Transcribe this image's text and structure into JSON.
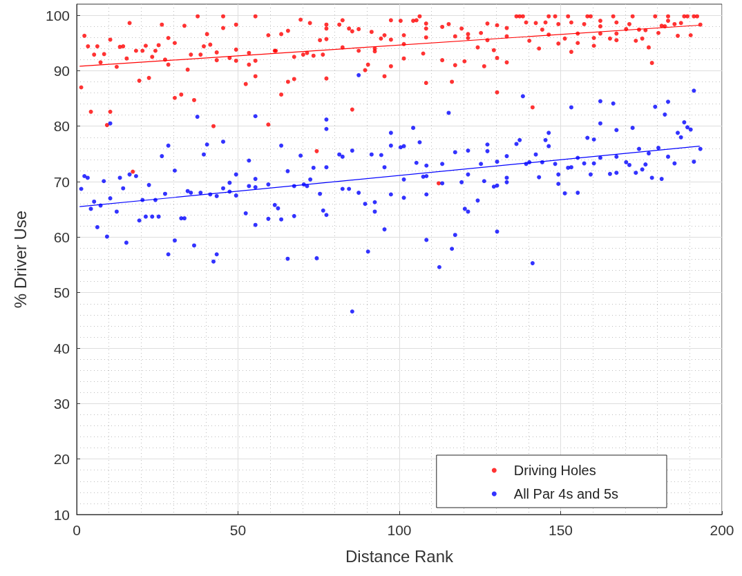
{
  "chart_data": {
    "type": "scatter",
    "xlabel": "Distance Rank",
    "ylabel": "% Driver Use",
    "xlim": [
      0,
      200
    ],
    "ylim": [
      10,
      102
    ],
    "xticks": [
      0,
      50,
      100,
      150,
      200
    ],
    "yticks": [
      10,
      20,
      30,
      40,
      50,
      60,
      70,
      80,
      90,
      100
    ],
    "grid": true,
    "legend": "bottom right",
    "marker": "circle",
    "series": [
      {
        "name": "Driving Holes",
        "color": "#ff0000",
        "x": [
          1.4,
          2.4,
          3.5,
          4.4,
          5.4,
          6.4,
          7.4,
          8.5,
          9.4,
          10.4,
          10.4,
          12.4,
          13.4,
          14.4,
          15.5,
          16.4,
          17.4,
          18.4,
          19.4,
          20.4,
          21.4,
          22.4,
          23.4,
          24.4,
          25.4,
          26.4,
          27.4,
          28.4,
          28.4,
          30.4,
          30.4,
          32.4,
          33.4,
          34.4,
          35.4,
          36.4,
          37.5,
          38.4,
          39.4,
          40.4,
          41.4,
          42.4,
          43.4,
          43.4,
          45.4,
          45.4,
          47.4,
          49.4,
          49.4,
          49.4,
          52.4,
          53.4,
          53.4,
          55.4,
          55.4,
          55.4,
          59.4,
          59.4,
          61.4,
          61.7,
          63.4,
          63.4,
          65.5,
          65.5,
          67.4,
          67.4,
          69.4,
          70.2,
          71.4,
          72.3,
          73.4,
          74.4,
          75.4,
          76.3,
          77.4,
          77.4,
          77.4,
          77.4,
          81.4,
          82.4,
          82.4,
          84.4,
          85.4,
          85.4,
          87.4,
          87.4,
          89.4,
          90.3,
          91.4,
          92.4,
          92.4,
          94.3,
          95.4,
          95.4,
          97.4,
          97.4,
          97.4,
          100.4,
          101.4,
          101.4,
          101.4,
          104.3,
          105.3,
          106.3,
          107.4,
          108.3,
          108.3,
          108.3,
          108.3,
          112.2,
          113.3,
          113.3,
          115.3,
          116.3,
          117.3,
          117.3,
          119.3,
          120.2,
          121.3,
          121.3,
          124.3,
          125.3,
          126.3,
          127.3,
          127.3,
          129.3,
          130.3,
          130.3,
          130.3,
          133.3,
          133.3,
          133.3,
          136.3,
          137.3,
          138.3,
          139.3,
          140.3,
          141.3,
          142.3,
          143.3,
          144.3,
          145.3,
          146.3,
          146.3,
          148.3,
          149.3,
          149.3,
          151.3,
          152.3,
          153.3,
          153.3,
          155.3,
          155.3,
          157.3,
          158.3,
          159.3,
          160.3,
          160.3,
          162.3,
          162.3,
          162.3,
          165.3,
          166.3,
          167.3,
          167.3,
          167.3,
          170.3,
          171.3,
          172.3,
          173.3,
          174.3,
          175.3,
          176.3,
          177.3,
          178.3,
          179.3,
          180.3,
          181.3,
          182.3,
          183.3,
          183.3,
          185.3,
          186.3,
          187.3,
          188.3,
          189.3,
          190.3,
          191.3,
          192.3,
          193.3
        ],
        "values": [
          87.0,
          96.3,
          94.4,
          82.6,
          92.9,
          94.4,
          91.5,
          93.0,
          80.2,
          95.6,
          82.6,
          90.7,
          94.3,
          94.4,
          92.2,
          98.6,
          71.8,
          93.6,
          88.2,
          93.6,
          94.5,
          88.7,
          92.5,
          93.6,
          94.6,
          98.3,
          92.0,
          95.9,
          91.1,
          95.0,
          85.1,
          85.7,
          98.1,
          90.2,
          92.9,
          84.7,
          99.8,
          92.9,
          94.4,
          96.6,
          94.7,
          80.0,
          93.3,
          91.9,
          99.8,
          97.7,
          92.3,
          98.3,
          93.8,
          91.8,
          87.6,
          93.2,
          91.1,
          99.8,
          91.8,
          89.0,
          96.4,
          80.3,
          93.6,
          93.6,
          96.6,
          85.7,
          97.2,
          88.0,
          92.5,
          88.5,
          99.2,
          92.9,
          93.2,
          98.6,
          92.7,
          75.5,
          95.5,
          92.9,
          98.3,
          97.6,
          95.7,
          88.6,
          98.3,
          99.1,
          94.2,
          97.6,
          97.1,
          83.0,
          97.5,
          93.6,
          90.1,
          91.1,
          97.0,
          94.0,
          93.5,
          95.8,
          96.4,
          89.0,
          99.1,
          95.6,
          90.8,
          99.0,
          96.4,
          94.8,
          92.2,
          99.0,
          99.1,
          99.8,
          93.1,
          98.5,
          97.6,
          96.0,
          87.8,
          69.7,
          97.9,
          91.9,
          98.4,
          88.0,
          96.2,
          91.0,
          97.6,
          91.7,
          96.6,
          95.9,
          94.2,
          96.8,
          90.8,
          98.5,
          95.5,
          93.7,
          98.2,
          92.3,
          86.1,
          97.7,
          96.2,
          91.5,
          99.8,
          99.8,
          99.8,
          98.7,
          95.4,
          83.4,
          98.6,
          94.0,
          97.4,
          98.7,
          99.8,
          96.5,
          99.8,
          98.4,
          94.9,
          95.8,
          99.8,
          98.7,
          93.4,
          96.7,
          95.0,
          98.4,
          99.8,
          99.8,
          95.9,
          94.5,
          99.0,
          98.0,
          96.7,
          95.8,
          99.8,
          98.7,
          96.7,
          95.5,
          97.5,
          98.4,
          99.8,
          95.4,
          97.4,
          95.8,
          97.3,
          94.2,
          91.4,
          99.8,
          96.8,
          98.1,
          98.0,
          99.8,
          99.0,
          98.4,
          96.3,
          98.6,
          99.8,
          99.8,
          96.4,
          99.8,
          99.8,
          98.3
        ]
      },
      {
        "name": "All Par 4s and 5s",
        "color": "#0000ff",
        "x": [
          1.4,
          2.4,
          3.4,
          4.4,
          5.4,
          6.4,
          7.4,
          8.4,
          9.4,
          10.4,
          10.4,
          12.4,
          13.4,
          14.4,
          15.4,
          16.4,
          18.4,
          19.4,
          20.4,
          21.4,
          22.4,
          23.4,
          24.4,
          25.4,
          26.4,
          27.4,
          28.4,
          28.4,
          30.4,
          30.4,
          32.4,
          33.4,
          34.4,
          35.4,
          36.4,
          37.4,
          38.4,
          39.4,
          40.4,
          41.4,
          42.4,
          43.4,
          43.4,
          45.4,
          45.4,
          47.4,
          47.4,
          49.4,
          49.4,
          52.4,
          53.4,
          53.4,
          55.4,
          55.4,
          55.4,
          55.4,
          59.4,
          59.4,
          61.4,
          62.4,
          63.4,
          63.4,
          65.4,
          65.4,
          67.4,
          67.4,
          69.4,
          70.4,
          71.4,
          72.4,
          73.4,
          74.4,
          75.4,
          76.4,
          77.4,
          77.4,
          77.4,
          77.4,
          81.4,
          82.4,
          82.4,
          84.4,
          85.4,
          85.4,
          87.4,
          87.4,
          89.4,
          90.3,
          91.4,
          92.4,
          92.4,
          94.4,
          95.4,
          95.4,
          97.4,
          97.4,
          97.4,
          100.4,
          101.4,
          101.4,
          101.4,
          104.3,
          105.3,
          106.3,
          107.4,
          108.4,
          108.4,
          108.4,
          108.4,
          112.4,
          113.3,
          113.3,
          115.3,
          116.3,
          117.3,
          117.3,
          119.3,
          120.3,
          121.3,
          121.3,
          121.3,
          124.3,
          125.3,
          126.3,
          127.3,
          127.3,
          129.3,
          130.3,
          130.3,
          130.3,
          133.3,
          133.3,
          133.3,
          136.3,
          137.3,
          138.3,
          139.3,
          140.3,
          141.3,
          142.3,
          143.3,
          144.3,
          145.3,
          146.3,
          146.3,
          148.3,
          149.3,
          149.3,
          151.3,
          152.3,
          153.3,
          153.3,
          155.3,
          155.3,
          157.3,
          158.3,
          159.3,
          160.3,
          160.3,
          162.3,
          162.3,
          162.3,
          165.3,
          166.3,
          167.3,
          167.3,
          167.3,
          170.3,
          171.3,
          172.3,
          173.3,
          174.3,
          175.3,
          176.3,
          177.3,
          178.3,
          179.3,
          180.3,
          181.3,
          182.3,
          183.3,
          183.3,
          185.3,
          186.3,
          187.3,
          188.3,
          189.3,
          190.3,
          191.3,
          191.3,
          193.3
        ],
        "values": [
          68.7,
          71.0,
          70.7,
          65.1,
          66.4,
          61.8,
          65.7,
          70.1,
          60.1,
          80.5,
          67.0,
          64.6,
          70.7,
          68.8,
          59.0,
          71.3,
          71.0,
          63.0,
          66.7,
          63.7,
          69.4,
          63.7,
          66.7,
          63.7,
          74.6,
          67.8,
          76.5,
          56.9,
          72.0,
          59.4,
          63.4,
          63.4,
          68.3,
          68.0,
          58.5,
          81.7,
          68.0,
          74.9,
          76.7,
          67.7,
          55.6,
          67.4,
          56.9,
          77.2,
          68.8,
          68.2,
          69.8,
          71.3,
          67.5,
          64.3,
          73.8,
          69.2,
          81.8,
          70.5,
          69.0,
          62.2,
          69.5,
          63.3,
          65.8,
          65.2,
          76.5,
          63.2,
          71.9,
          56.1,
          69.2,
          63.8,
          74.7,
          69.5,
          69.2,
          70.4,
          72.5,
          56.2,
          67.8,
          64.8,
          81.2,
          79.5,
          72.6,
          64.0,
          74.9,
          74.5,
          68.7,
          68.7,
          75.6,
          46.6,
          89.2,
          68.0,
          66.0,
          57.4,
          74.9,
          66.3,
          64.6,
          74.8,
          72.6,
          61.4,
          78.8,
          76.5,
          67.7,
          76.2,
          76.4,
          70.4,
          67.1,
          79.7,
          73.4,
          77.1,
          70.9,
          72.9,
          71.0,
          67.7,
          59.5,
          54.6,
          73.2,
          69.7,
          82.4,
          57.9,
          75.3,
          60.4,
          69.9,
          65.1,
          75.6,
          71.3,
          64.6,
          66.6,
          73.2,
          70.1,
          76.7,
          75.5,
          69.1,
          73.6,
          69.3,
          61.0,
          74.6,
          70.7,
          69.9,
          76.8,
          77.5,
          85.4,
          73.2,
          73.5,
          55.3,
          74.9,
          70.8,
          73.5,
          77.5,
          78.8,
          76.4,
          73.2,
          71.3,
          69.6,
          67.9,
          72.5,
          83.4,
          72.6,
          74.3,
          68.0,
          73.3,
          77.9,
          71.3,
          77.6,
          73.3,
          84.5,
          80.5,
          74.3,
          71.4,
          84.1,
          79.3,
          74.5,
          71.6,
          73.5,
          73.0,
          79.7,
          71.6,
          75.9,
          72.2,
          73.1,
          75.1,
          70.7,
          83.5,
          76.1,
          70.5,
          82.1,
          84.4,
          74.5,
          73.3,
          78.8,
          78.0,
          80.7,
          79.8,
          79.4,
          86.4,
          73.6,
          75.9
        ]
      },
      {
        "type": "line",
        "marker": "none",
        "color": "#ff0000",
        "x": [
          1,
          193
        ],
        "values": [
          90.8,
          98.2
        ]
      },
      {
        "type": "line",
        "marker": "none",
        "color": "#0000ff",
        "x": [
          1,
          193
        ],
        "values": [
          65.5,
          76.4
        ]
      }
    ]
  }
}
